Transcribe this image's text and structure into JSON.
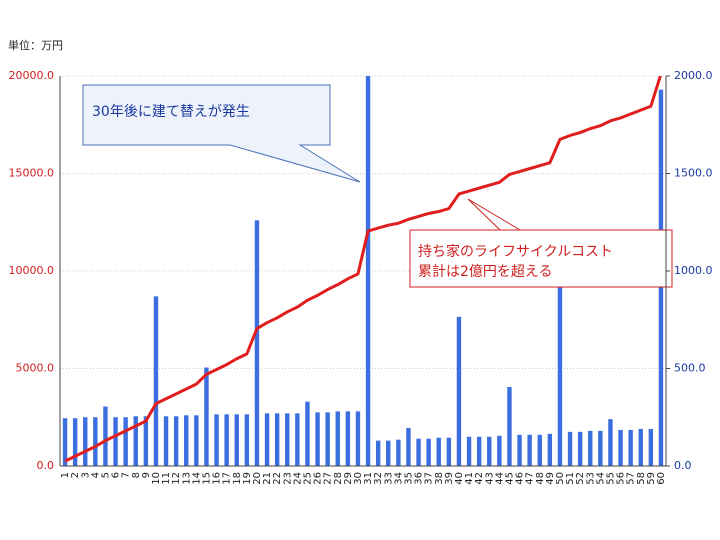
{
  "chart_data": {
    "type": "bar-line",
    "unit_label": "単位：万円",
    "categories": [
      "1",
      "2",
      "3",
      "4",
      "5",
      "6",
      "7",
      "8",
      "9",
      "10",
      "11",
      "12",
      "13",
      "14",
      "15",
      "16",
      "17",
      "18",
      "19",
      "20",
      "21",
      "22",
      "23",
      "24",
      "25",
      "26",
      "27",
      "28",
      "29",
      "30",
      "31",
      "32",
      "33",
      "34",
      "35",
      "36",
      "37",
      "38",
      "39",
      "40",
      "41",
      "42",
      "43",
      "44",
      "45",
      "46",
      "47",
      "48",
      "49",
      "50",
      "51",
      "52",
      "53",
      "54",
      "55",
      "56",
      "57",
      "58",
      "59",
      "60"
    ],
    "series": [
      {
        "type": "bar",
        "axis": "y2",
        "color": "#3b6fe0",
        "values": [
          245,
          245,
          250,
          250,
          305,
          250,
          250,
          255,
          255,
          870,
          255,
          255,
          260,
          260,
          505,
          265,
          265,
          265,
          265,
          1260,
          270,
          270,
          270,
          270,
          330,
          275,
          275,
          280,
          280,
          280,
          2000,
          130,
          130,
          135,
          195,
          140,
          140,
          145,
          145,
          765,
          150,
          150,
          150,
          155,
          405,
          160,
          160,
          160,
          165,
          1000,
          175,
          175,
          180,
          180,
          240,
          185,
          185,
          190,
          190,
          1930
        ]
      },
      {
        "type": "line",
        "color": "#e01e1e",
        "values": [
          250,
          500,
          750,
          1000,
          1300,
          1550,
          1800,
          2050,
          2300,
          3200,
          3450,
          3700,
          3950,
          4200,
          4700,
          4950,
          5200,
          5500,
          5750,
          7050,
          7350,
          7600,
          7900,
          8150,
          8500,
          8750,
          9050,
          9300,
          9600,
          9850,
          12050,
          12200,
          12350,
          12450,
          12650,
          12800,
          12950,
          13050,
          13200,
          13950,
          14100,
          14250,
          14400,
          14550,
          14950,
          15100,
          15250,
          15400,
          15550,
          16750,
          16950,
          17100,
          17300,
          17450,
          17700,
          17850,
          18050,
          18250,
          18450,
          20100
        ]
      }
    ],
    "ylim": [
      0,
      20000
    ],
    "yticks": [
      {
        "value": 0,
        "label": "0.0"
      },
      {
        "value": 5000,
        "label": "5000.0"
      },
      {
        "value": 10000,
        "label": "10000.0"
      },
      {
        "value": 15000,
        "label": "15000.0"
      },
      {
        "value": 20000,
        "label": "20000.0"
      }
    ],
    "y2lim": [
      0,
      2000
    ],
    "y2ticks": [
      {
        "value": 0,
        "label": "0.0"
      },
      {
        "value": 500,
        "label": "500.0"
      },
      {
        "value": 1000,
        "label": "1000.0"
      },
      {
        "value": 1500,
        "label": "1500.0"
      },
      {
        "value": 2000,
        "label": "2000.0"
      }
    ],
    "grid": true,
    "annotations": [
      "30年後に建て替えが発生",
      "持ち家のライフサイクルコスト",
      "累計は2億円を超える"
    ]
  }
}
